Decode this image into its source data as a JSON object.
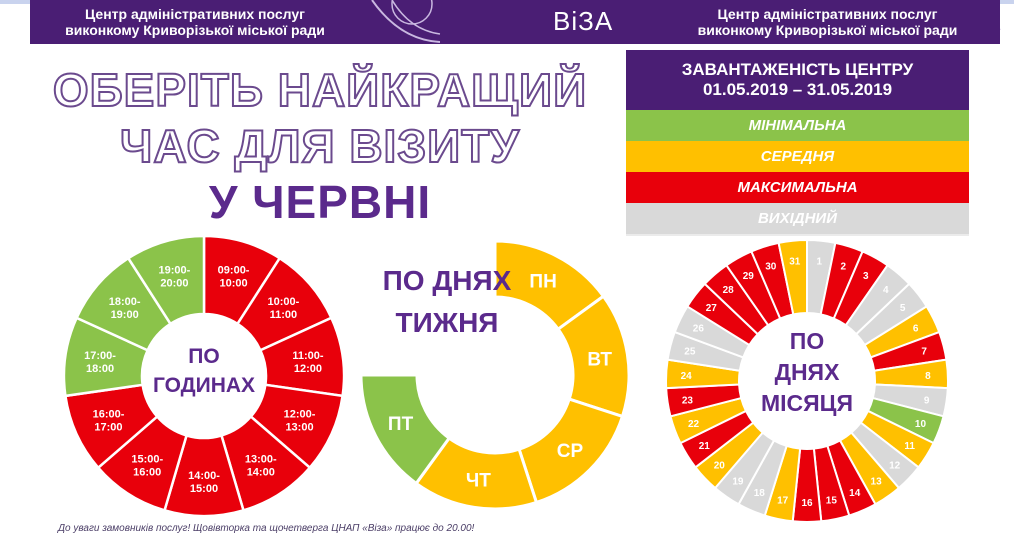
{
  "header": {
    "left_line1": "Центр адміністративних послуг",
    "left_line2": "виконкому Криворізької міської ради",
    "logo": "ВіЗА",
    "right_line1": "Центр адміністративних послуг",
    "right_line2": "виконкому Криворізької міської ради"
  },
  "title": {
    "line1": "ОБЕРІТЬ НАЙКРАЩИЙ",
    "line2": "ЧАС ДЛЯ ВІЗИТУ",
    "line3": "У ЧЕРВНІ"
  },
  "legend": {
    "heading": "ЗАВАНТАЖЕНІСТЬ ЦЕНТРУ",
    "period": "01.05.2019 – 31.05.2019",
    "items": [
      {
        "label": "МІНІМАЛЬНА",
        "color": "#8bc34a",
        "text_color": "#ffffff"
      },
      {
        "label": "СЕРЕДНЯ",
        "color": "#ffc000",
        "text_color": "#ffffff"
      },
      {
        "label": "МАКСИМАЛЬНА",
        "color": "#e8000b",
        "text_color": "#ffffff"
      },
      {
        "label": "ВИХІДНИЙ",
        "color": "#d9d9d9",
        "text_color": "#ffffff"
      }
    ]
  },
  "colors": {
    "green": "#8bc34a",
    "yellow": "#ffc000",
    "red": "#e8000b",
    "grey": "#d9d9d9",
    "purple": "#5b2a8c"
  },
  "hours_chart": {
    "center_line1": "ПО",
    "center_line2": "ГОДИНАХ",
    "segments": [
      {
        "line1": "09:00-",
        "line2": "10:00",
        "level": "red"
      },
      {
        "line1": "10:00-",
        "line2": "11:00",
        "level": "red"
      },
      {
        "line1": "11:00-",
        "line2": "12:00",
        "level": "red"
      },
      {
        "line1": "12:00-",
        "line2": "13:00",
        "level": "red"
      },
      {
        "line1": "13:00-",
        "line2": "14:00",
        "level": "red"
      },
      {
        "line1": "14:00-",
        "line2": "15:00",
        "level": "red"
      },
      {
        "line1": "15:00-",
        "line2": "16:00",
        "level": "red"
      },
      {
        "line1": "16:00-",
        "line2": "17:00",
        "level": "red"
      },
      {
        "line1": "17:00-",
        "line2": "18:00",
        "level": "green"
      },
      {
        "line1": "18:00-",
        "line2": "19:00",
        "level": "green"
      },
      {
        "line1": "19:00-",
        "line2": "20:00",
        "level": "green"
      }
    ]
  },
  "weekday_chart": {
    "title_line1": "ПО ДНЯХ",
    "title_line2": "ТИЖНЯ",
    "segments": [
      {
        "label": "ПН",
        "level": "yellow"
      },
      {
        "label": "ВТ",
        "level": "yellow"
      },
      {
        "label": "СР",
        "level": "yellow"
      },
      {
        "label": "ЧТ",
        "level": "yellow"
      },
      {
        "label": "ПТ",
        "level": "green"
      }
    ]
  },
  "month_chart": {
    "center_line1": "ПО",
    "center_line2": "ДНЯХ",
    "center_line3": "МІСЯЦЯ",
    "days": [
      {
        "day": "1",
        "level": "grey"
      },
      {
        "day": "2",
        "level": "red"
      },
      {
        "day": "3",
        "level": "red"
      },
      {
        "day": "4",
        "level": "grey"
      },
      {
        "day": "5",
        "level": "grey"
      },
      {
        "day": "6",
        "level": "yellow"
      },
      {
        "day": "7",
        "level": "red"
      },
      {
        "day": "8",
        "level": "yellow"
      },
      {
        "day": "9",
        "level": "grey"
      },
      {
        "day": "10",
        "level": "green"
      },
      {
        "day": "11",
        "level": "yellow"
      },
      {
        "day": "12",
        "level": "grey"
      },
      {
        "day": "13",
        "level": "yellow"
      },
      {
        "day": "14",
        "level": "red"
      },
      {
        "day": "15",
        "level": "red"
      },
      {
        "day": "16",
        "level": "red"
      },
      {
        "day": "17",
        "level": "yellow"
      },
      {
        "day": "18",
        "level": "grey"
      },
      {
        "day": "19",
        "level": "grey"
      },
      {
        "day": "20",
        "level": "yellow"
      },
      {
        "day": "21",
        "level": "red"
      },
      {
        "day": "22",
        "level": "yellow"
      },
      {
        "day": "23",
        "level": "red"
      },
      {
        "day": "24",
        "level": "yellow"
      },
      {
        "day": "25",
        "level": "grey"
      },
      {
        "day": "26",
        "level": "grey"
      },
      {
        "day": "27",
        "level": "red"
      },
      {
        "day": "28",
        "level": "red"
      },
      {
        "day": "29",
        "level": "red"
      },
      {
        "day": "30",
        "level": "red"
      },
      {
        "day": "31",
        "level": "yellow"
      }
    ]
  },
  "footer": {
    "note": "До уваги замовників послуг!  Щовівторка та щочетверга ЦНАП «Віза» працює до 20.00!"
  }
}
